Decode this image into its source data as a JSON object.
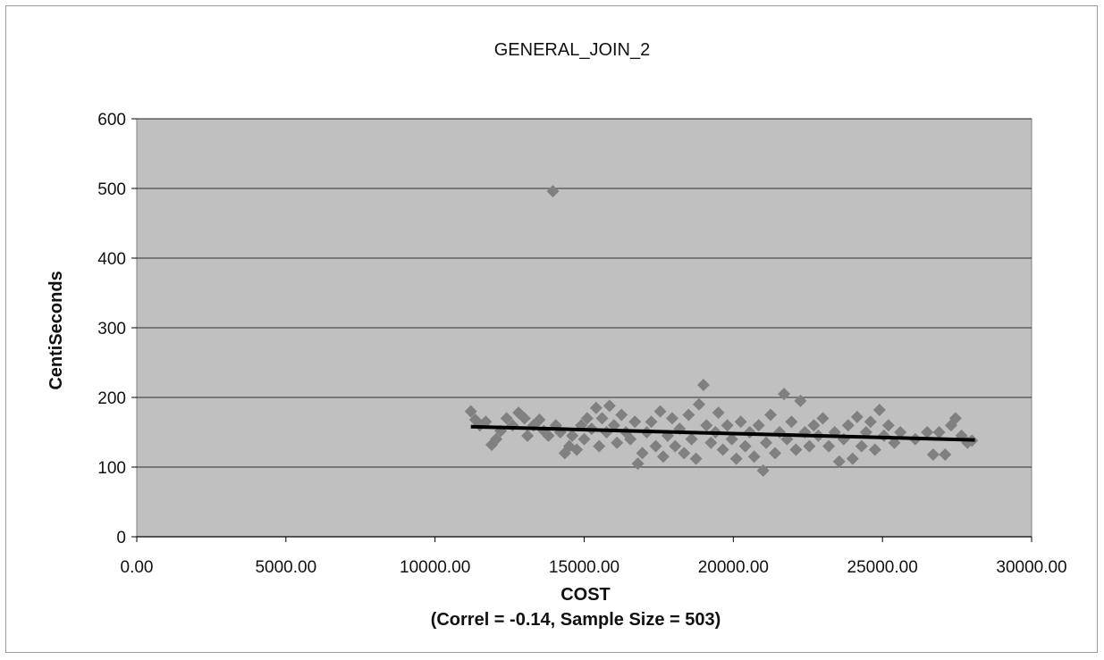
{
  "chart_data": {
    "type": "scatter",
    "title": "GENERAL_JOIN_2",
    "xlabel": "COST",
    "xlabel_sub": "(Correl = -0.14, Sample Size = 503)",
    "ylabel": "CentiSeconds",
    "xlim": [
      0,
      30000
    ],
    "ylim": [
      0,
      600
    ],
    "x_ticks": [
      0,
      5000,
      10000,
      15000,
      20000,
      25000,
      30000
    ],
    "x_tick_labels": [
      "0.00",
      "5000.00",
      "10000.00",
      "15000.00",
      "20000.00",
      "25000.00",
      "30000.00"
    ],
    "y_ticks": [
      0,
      100,
      200,
      300,
      400,
      500,
      600
    ],
    "y_tick_labels": [
      "0",
      "100",
      "200",
      "300",
      "400",
      "500",
      "600"
    ],
    "grid": "horizontal",
    "colors": {
      "plot_background": "#c0c0c0",
      "marker": "#808080",
      "trendline": "#000000",
      "gridline": "#000000"
    },
    "series": [
      {
        "marker": "diamond",
        "points": [
          [
            11200,
            180
          ],
          [
            11350,
            168
          ],
          [
            11500,
            160
          ],
          [
            11700,
            165
          ],
          [
            11900,
            132
          ],
          [
            12050,
            140
          ],
          [
            12200,
            152
          ],
          [
            12400,
            170
          ],
          [
            12600,
            160
          ],
          [
            12800,
            178
          ],
          [
            13000,
            170
          ],
          [
            13100,
            145
          ],
          [
            13300,
            160
          ],
          [
            13500,
            168
          ],
          [
            13650,
            152
          ],
          [
            13800,
            145
          ],
          [
            13950,
            496
          ],
          [
            14050,
            160
          ],
          [
            14200,
            150
          ],
          [
            14350,
            120
          ],
          [
            14500,
            130
          ],
          [
            14600,
            145
          ],
          [
            14750,
            125
          ],
          [
            14900,
            160
          ],
          [
            15000,
            140
          ],
          [
            15100,
            170
          ],
          [
            15250,
            155
          ],
          [
            15400,
            185
          ],
          [
            15500,
            130
          ],
          [
            15600,
            170
          ],
          [
            15750,
            150
          ],
          [
            15850,
            188
          ],
          [
            16000,
            160
          ],
          [
            16100,
            135
          ],
          [
            16250,
            175
          ],
          [
            16400,
            150
          ],
          [
            16550,
            140
          ],
          [
            16700,
            165
          ],
          [
            16800,
            105
          ],
          [
            16950,
            120
          ],
          [
            17100,
            150
          ],
          [
            17250,
            165
          ],
          [
            17400,
            130
          ],
          [
            17550,
            180
          ],
          [
            17650,
            115
          ],
          [
            17800,
            145
          ],
          [
            17950,
            170
          ],
          [
            18050,
            130
          ],
          [
            18200,
            155
          ],
          [
            18350,
            120
          ],
          [
            18500,
            175
          ],
          [
            18600,
            140
          ],
          [
            18750,
            112
          ],
          [
            18850,
            190
          ],
          [
            19000,
            218
          ],
          [
            19100,
            160
          ],
          [
            19250,
            135
          ],
          [
            19400,
            150
          ],
          [
            19500,
            178
          ],
          [
            19650,
            125
          ],
          [
            19800,
            160
          ],
          [
            19950,
            140
          ],
          [
            20100,
            112
          ],
          [
            20250,
            165
          ],
          [
            20400,
            130
          ],
          [
            20550,
            150
          ],
          [
            20700,
            115
          ],
          [
            20850,
            160
          ],
          [
            21000,
            95
          ],
          [
            21100,
            135
          ],
          [
            21250,
            175
          ],
          [
            21400,
            120
          ],
          [
            21550,
            150
          ],
          [
            21700,
            205
          ],
          [
            21800,
            140
          ],
          [
            21950,
            165
          ],
          [
            22100,
            125
          ],
          [
            22250,
            195
          ],
          [
            22400,
            150
          ],
          [
            22550,
            130
          ],
          [
            22700,
            160
          ],
          [
            22850,
            145
          ],
          [
            23000,
            170
          ],
          [
            23200,
            130
          ],
          [
            23400,
            150
          ],
          [
            23550,
            108
          ],
          [
            23700,
            140
          ],
          [
            23850,
            160
          ],
          [
            24000,
            112
          ],
          [
            24150,
            172
          ],
          [
            24300,
            130
          ],
          [
            24450,
            150
          ],
          [
            24600,
            165
          ],
          [
            24750,
            125
          ],
          [
            24900,
            182
          ],
          [
            25050,
            145
          ],
          [
            25200,
            160
          ],
          [
            25400,
            135
          ],
          [
            25600,
            150
          ],
          [
            26100,
            140
          ],
          [
            26500,
            150
          ],
          [
            26700,
            118
          ],
          [
            26900,
            150
          ],
          [
            27100,
            118
          ],
          [
            27300,
            160
          ],
          [
            27450,
            170
          ],
          [
            27650,
            145
          ],
          [
            27850,
            135
          ],
          [
            28000,
            138
          ]
        ]
      }
    ],
    "trendline": {
      "x": [
        11200,
        28100
      ],
      "y": [
        158,
        139
      ]
    }
  }
}
